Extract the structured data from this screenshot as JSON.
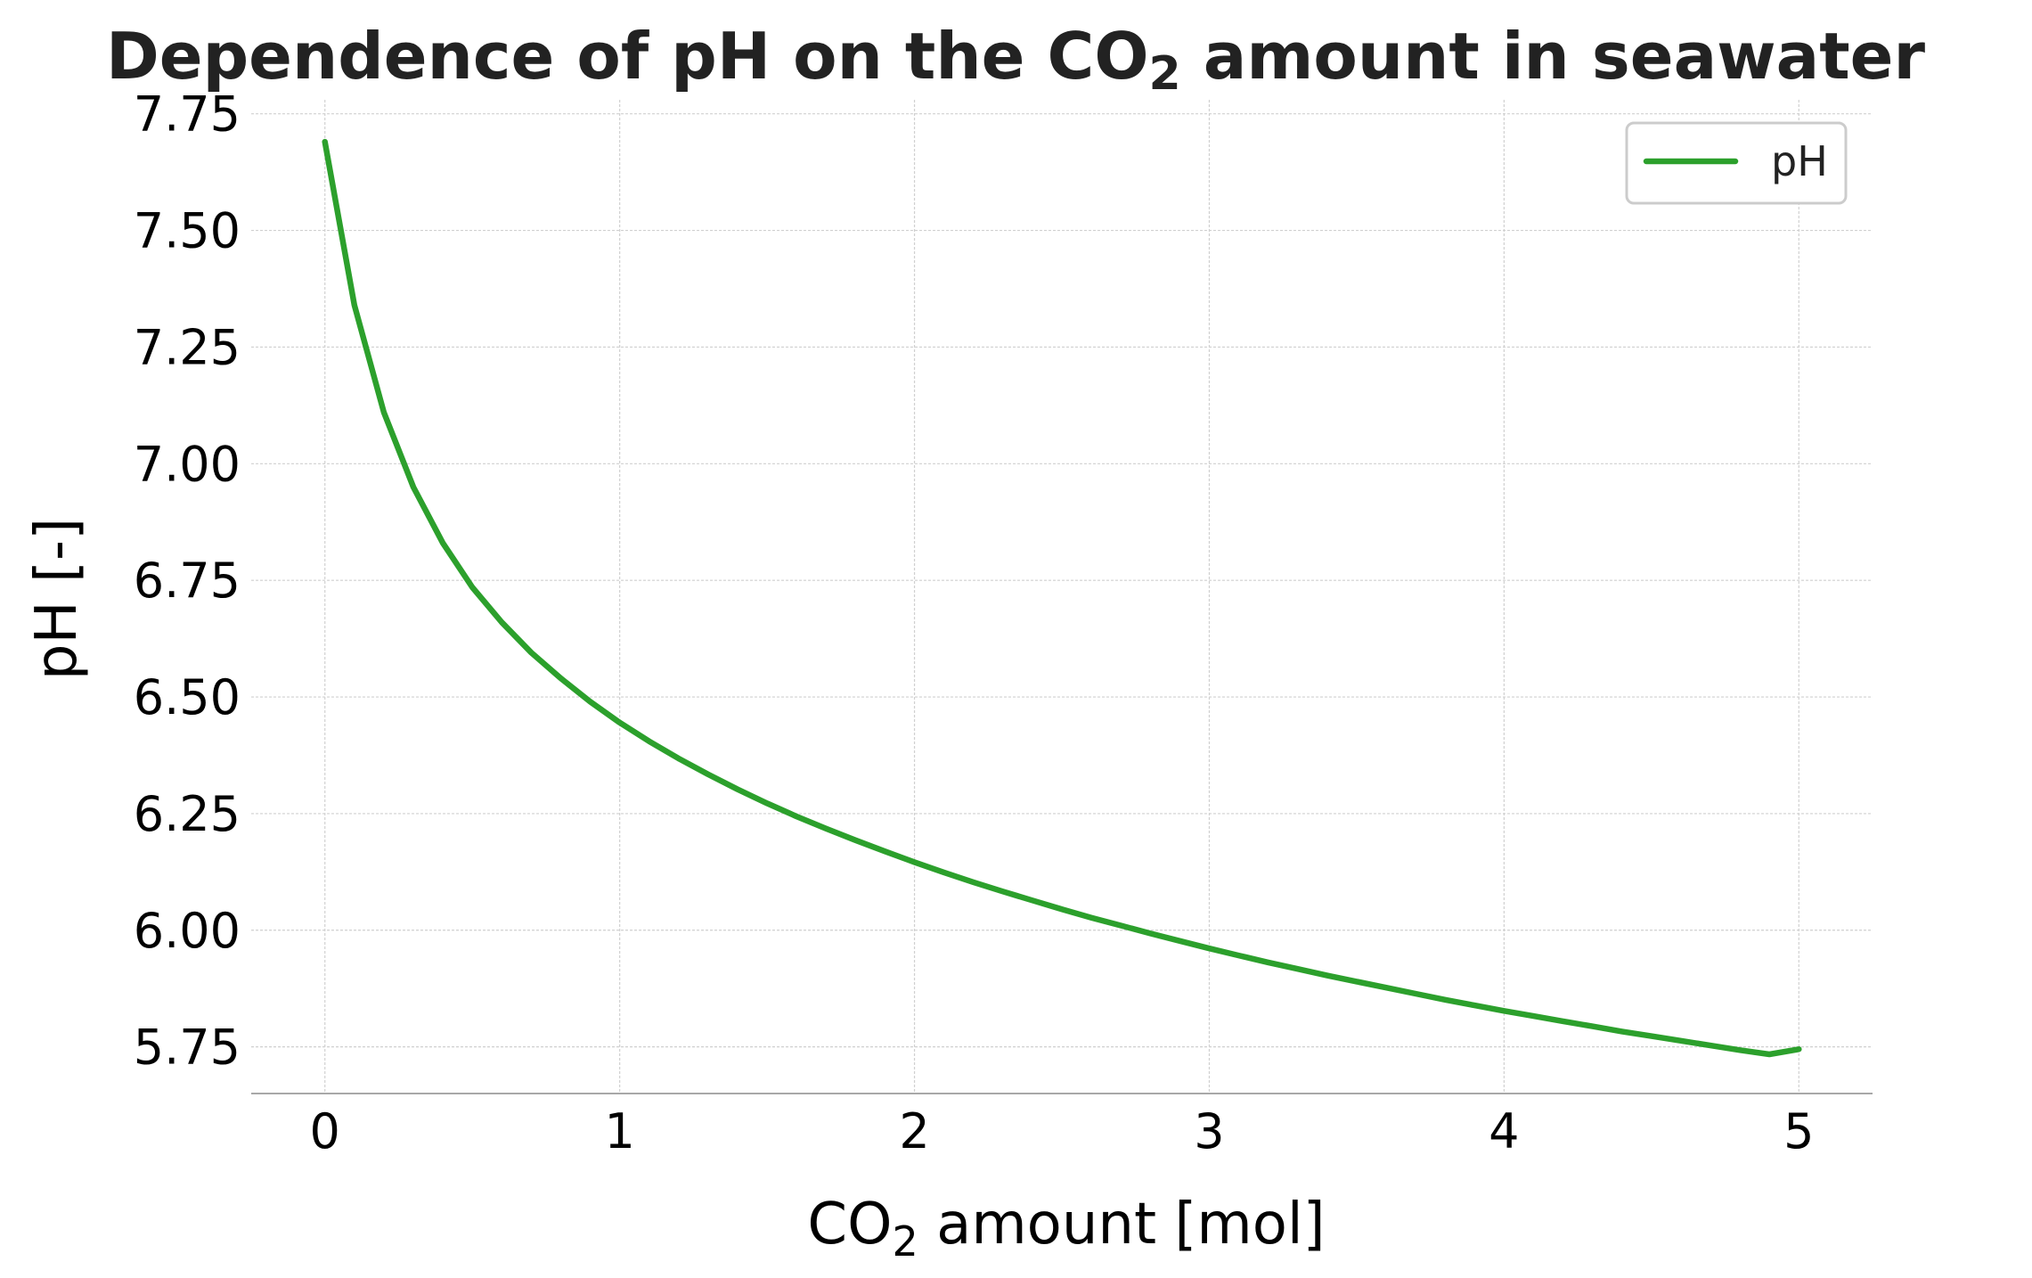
{
  "chart_data": {
    "type": "line",
    "title": {
      "prefix": "Dependence of pH on the CO",
      "subscript": "2",
      "suffix": " amount in seawater"
    },
    "xlabel": {
      "prefix": "CO",
      "subscript": "2",
      "suffix": " amount [mol]"
    },
    "ylabel": "pH [-]",
    "xlim": [
      -0.25,
      5.25
    ],
    "ylim": [
      5.65,
      7.78
    ],
    "x_ticks": [
      0,
      1,
      2,
      3,
      4,
      5
    ],
    "x_tick_labels": [
      "0",
      "1",
      "2",
      "3",
      "4",
      "5"
    ],
    "y_ticks": [
      5.75,
      6.0,
      6.25,
      6.5,
      6.75,
      7.0,
      7.25,
      7.5,
      7.75
    ],
    "y_tick_labels": [
      "5.75",
      "6.00",
      "6.25",
      "6.50",
      "6.75",
      "7.00",
      "7.25",
      "7.50",
      "7.75"
    ],
    "grid": true,
    "legend": {
      "position": "top-right"
    },
    "series": [
      {
        "name": "pH",
        "color": "#2ca02c",
        "x": [
          0,
          0.1,
          0.2,
          0.3,
          0.4,
          0.5,
          0.6,
          0.7,
          0.8,
          0.9,
          1.0,
          1.1,
          1.2,
          1.3,
          1.4,
          1.5,
          1.6,
          1.7,
          1.8,
          1.9,
          2.0,
          2.1,
          2.2,
          2.3,
          2.4,
          2.5,
          2.6,
          2.7,
          2.8,
          2.9,
          3.0,
          3.1,
          3.2,
          3.3,
          3.4,
          3.5,
          3.6,
          3.7,
          3.8,
          3.9,
          4.0,
          4.1,
          4.2,
          4.3,
          4.4,
          4.5,
          4.6,
          4.7,
          4.8,
          4.9,
          5.0
        ],
        "y": [
          7.69,
          7.34,
          7.11,
          6.95,
          6.83,
          6.735,
          6.66,
          6.595,
          6.54,
          6.49,
          6.445,
          6.405,
          6.368,
          6.334,
          6.302,
          6.272,
          6.244,
          6.218,
          6.193,
          6.169,
          6.146,
          6.124,
          6.103,
          6.083,
          6.064,
          6.045,
          6.027,
          6.01,
          5.993,
          5.977,
          5.961,
          5.946,
          5.931,
          5.917,
          5.903,
          5.89,
          5.877,
          5.864,
          5.851,
          5.839,
          5.827,
          5.816,
          5.805,
          5.794,
          5.783,
          5.773,
          5.763,
          5.753,
          5.743,
          5.734,
          5.745
        ]
      }
    ]
  }
}
